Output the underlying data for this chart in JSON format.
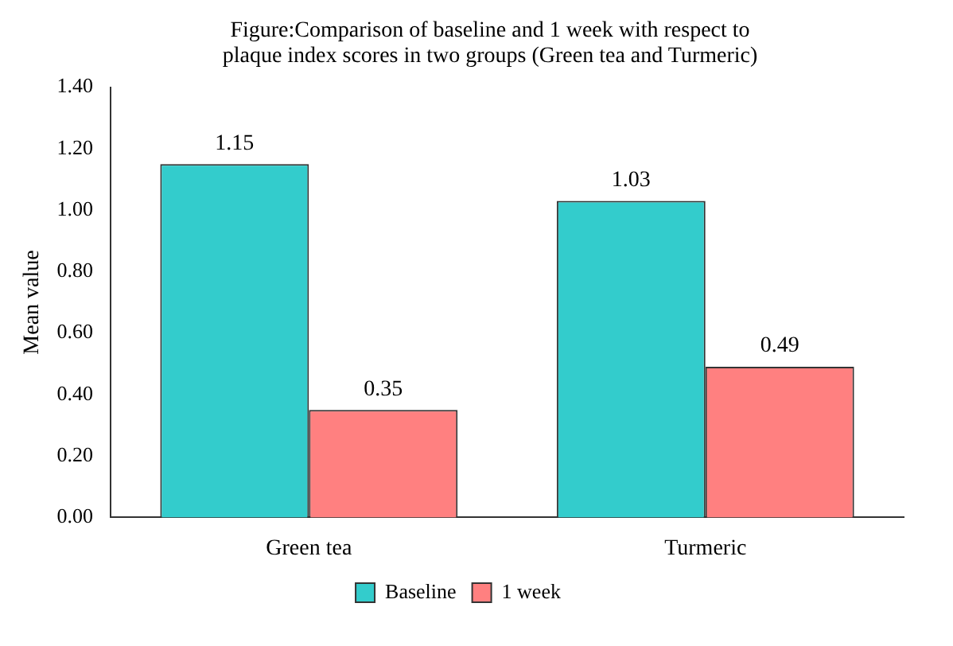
{
  "chart_data": {
    "type": "bar",
    "title": "Figure:Comparison of baseline and 1 week with respect to plaque index scores in two groups (Green tea and Turmeric)",
    "ylabel": "Mean value",
    "categories": [
      "Green tea",
      "Turmeric"
    ],
    "series": [
      {
        "name": "Baseline",
        "color": "#33cccc",
        "values": [
          1.15,
          1.03
        ]
      },
      {
        "name": "1 week",
        "color": "#ff8080",
        "values": [
          0.35,
          0.49
        ]
      }
    ],
    "ylim": [
      0,
      1.4
    ],
    "yticks": [
      {
        "value": 0,
        "label": "0.00"
      },
      {
        "value": 0.2,
        "label": "0.20"
      },
      {
        "value": 0.4,
        "label": "0.40"
      },
      {
        "value": 0.6,
        "label": "0.60"
      },
      {
        "value": 0.8,
        "label": "0.80"
      },
      {
        "value": 1.0,
        "label": "1.00"
      },
      {
        "value": 1.2,
        "label": "1.20"
      },
      {
        "value": 1.4,
        "label": "1.40"
      }
    ],
    "data_labels": true,
    "legend": "bottom",
    "grid": false
  }
}
